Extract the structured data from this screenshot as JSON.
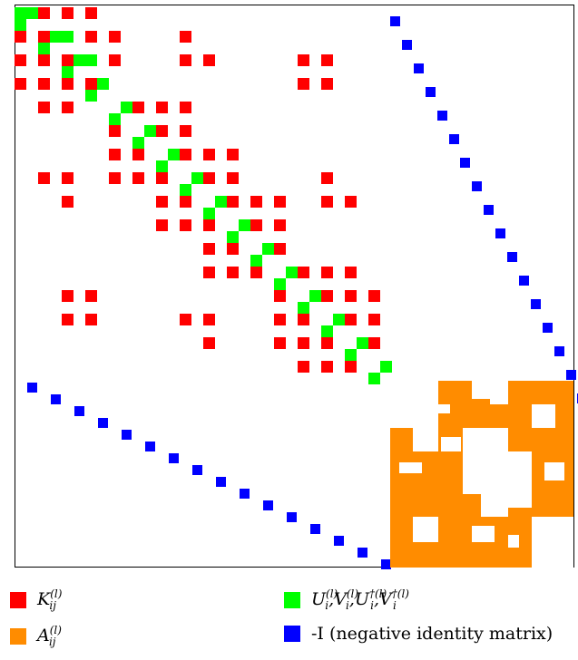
{
  "matrix": {
    "colors": {
      "K": "#ff0000",
      "U": "#00ff00",
      "A": "#ff8c00",
      "I": "#0000ff"
    },
    "units": 24
  },
  "legend": {
    "k": {
      "label": "K",
      "sub": "ij",
      "sup": "(l)",
      "color": "#ff0000"
    },
    "u": {
      "label": "U",
      "sub": "i",
      "sup": "(l)",
      "color": "#00ff00",
      "items": [
        "U",
        "V",
        "U",
        "V"
      ],
      "sups": [
        "(l)",
        "(l)",
        "†(l)",
        "†(l)"
      ]
    },
    "a": {
      "label": "A",
      "sub": "ij",
      "sup": "(l)",
      "color": "#ff8c00"
    },
    "i": {
      "label": "-I (negative identity matrix)",
      "color": "#0000ff"
    }
  }
}
